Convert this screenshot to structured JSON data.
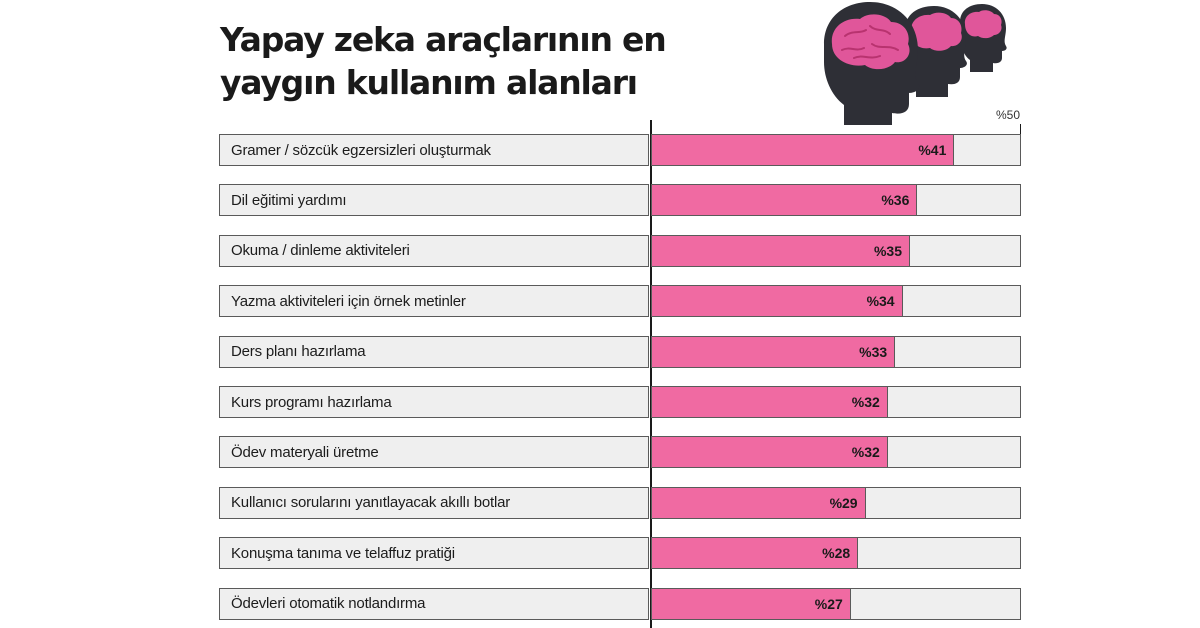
{
  "chart_data": {
    "type": "bar",
    "orientation": "horizontal",
    "title": [
      "Yapay zeka araçlarının en",
      "yaygın kullanım alanları"
    ],
    "axis_max_label": "%50",
    "xlim": [
      0,
      50
    ],
    "bar_color": "#f06aa2",
    "track_color": "#efefef",
    "categories": [
      "Gramer / sözcük egzersizleri oluşturmak",
      "Dil eğitimi yardımı",
      "Okuma / dinleme  aktiviteleri",
      "Yazma aktiviteleri için örnek metinler",
      "Ders planı hazırlama",
      "Kurs programı hazırlama",
      "Ödev materyali üretme",
      "Kullanıcı sorularını yanıtlayacak akıllı botlar",
      "Konuşma tanıma ve telaffuz pratiği",
      "Ödevleri otomatik notlandırma"
    ],
    "values": [
      41,
      36,
      35,
      34,
      33,
      32,
      32,
      29,
      28,
      27
    ],
    "value_labels": [
      "%41",
      "%36",
      "%35",
      "%34",
      "%33",
      "%32",
      "%32",
      "%29",
      "%28",
      "%27"
    ]
  },
  "illustration": {
    "icon": "three-head-silhouettes-with-brains",
    "head_color": "#2e2f36",
    "brain_color": "#e0569a"
  }
}
